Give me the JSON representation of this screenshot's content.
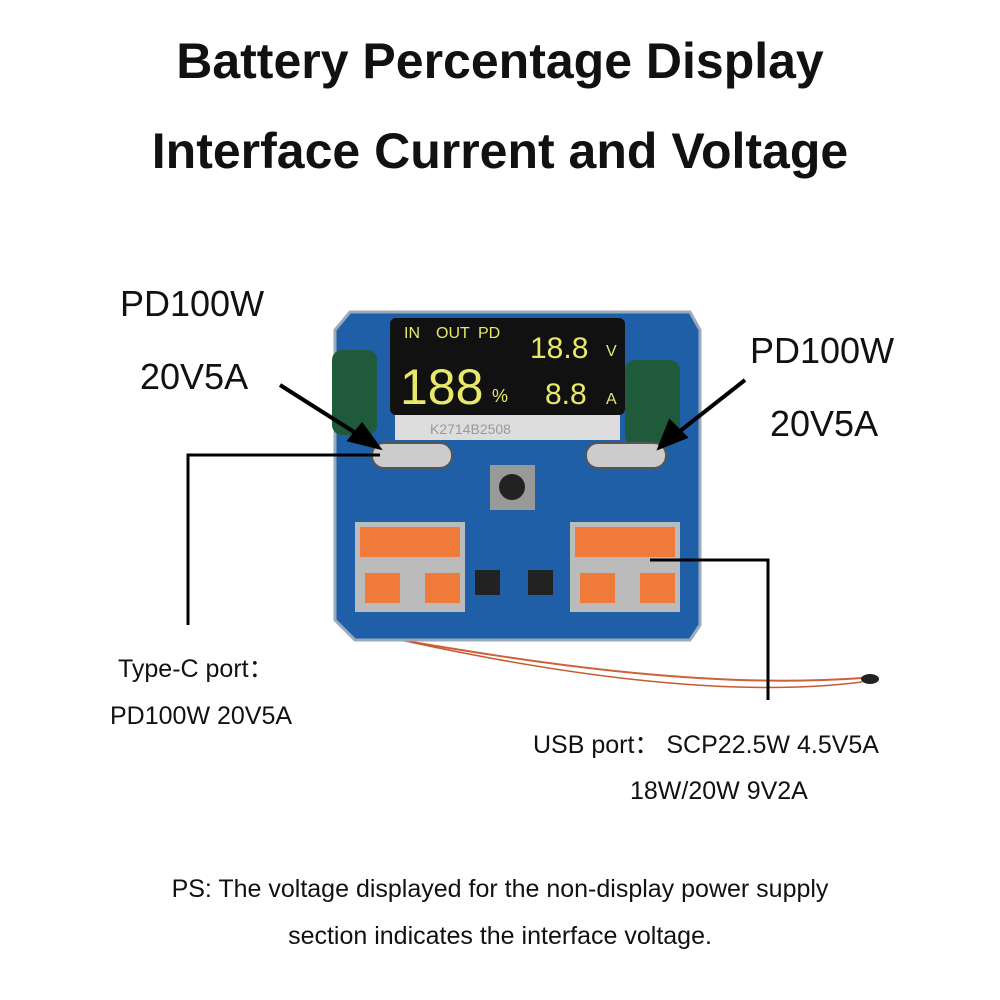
{
  "title": {
    "line1": "Battery Percentage Display",
    "line2": "Interface Current and Voltage"
  },
  "left_callout": {
    "line1": "PD100W",
    "line2": "20V5A"
  },
  "right_callout": {
    "line1": "PD100W",
    "line2": "20V5A"
  },
  "typec_note": {
    "line1": "Type-C port：",
    "line2": "PD100W 20V5A"
  },
  "usb_note": {
    "line1": "USB port：  SCP22.5W 4.5V5A",
    "line2": "18W/20W 9V2A"
  },
  "ps_note": {
    "line1": "PS: The voltage displayed for the non-display power supply",
    "line2": "section indicates the interface voltage."
  },
  "display": {
    "in": "IN",
    "out": "OUT",
    "pd": "PD",
    "percent_digits": "188",
    "percent_sign": "%",
    "voltage": "18.8",
    "voltage_unit": "V",
    "current": "8.8",
    "current_unit": "A",
    "serial": "K2714B2508",
    "segment_color": "#e8e86a"
  },
  "colors": {
    "pcb": "#1f5fa8",
    "usb_tongue": "#f07a3a",
    "wire": "#d0603a"
  }
}
